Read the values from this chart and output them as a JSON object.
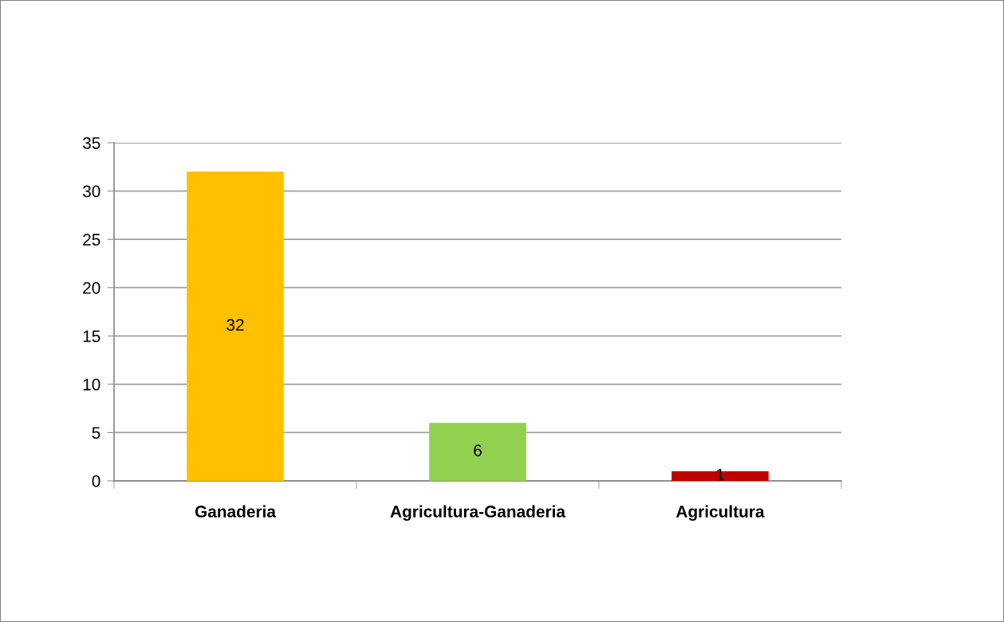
{
  "chart_data": {
    "type": "bar",
    "categories": [
      "Ganaderia",
      "Agricultura-Ganaderia",
      "Agricultura"
    ],
    "values": [
      32,
      6,
      1
    ],
    "colors": [
      "#ffc000",
      "#92d050",
      "#c00000"
    ],
    "ylim": [
      0,
      35
    ],
    "yticks": [
      0,
      5,
      10,
      15,
      20,
      25,
      30,
      35
    ],
    "grid": "y",
    "data_labels": true,
    "legend": false
  }
}
